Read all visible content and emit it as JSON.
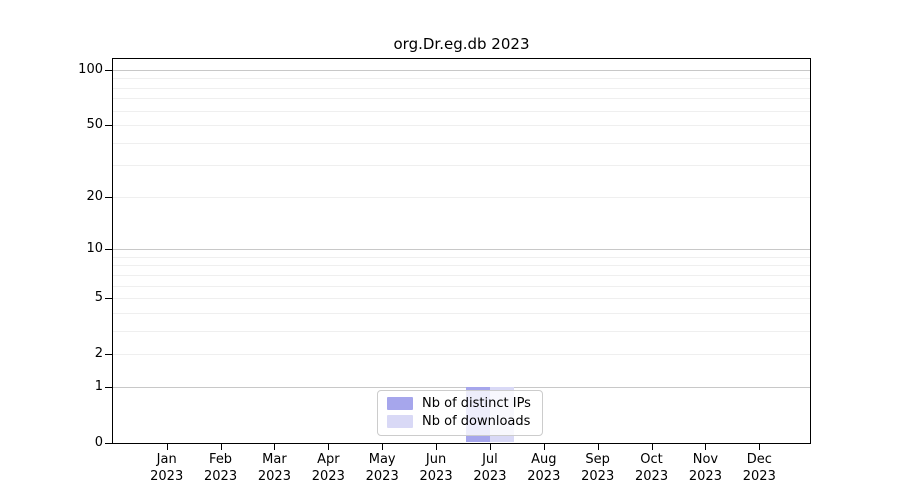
{
  "chart_data": {
    "type": "bar",
    "title": "org.Dr.eg.db 2023",
    "categories": [
      "Jan",
      "Feb",
      "Mar",
      "Apr",
      "May",
      "Jun",
      "Jul",
      "Aug",
      "Sep",
      "Oct",
      "Nov",
      "Dec"
    ],
    "category_year": "2023",
    "series": [
      {
        "name": "Nb of distinct IPs",
        "color": "#a6a6ec",
        "values": [
          0,
          0,
          0,
          0,
          0,
          0,
          1,
          0,
          0,
          0,
          0,
          0
        ]
      },
      {
        "name": "Nb of downloads",
        "color": "#d9d9f6",
        "values": [
          0,
          0,
          0,
          0,
          0,
          0,
          1,
          0,
          0,
          0,
          0,
          0
        ]
      }
    ],
    "yscale": "log1p",
    "ylim": [
      0,
      110
    ],
    "ytick_values": [
      0,
      1,
      2,
      5,
      10,
      20,
      50,
      100
    ],
    "ytick_labels": [
      "0",
      "1",
      "2",
      "5",
      "10",
      "20",
      "50",
      "100"
    ],
    "grid": {
      "minor_values": [
        2,
        3,
        4,
        5,
        6,
        7,
        8,
        9,
        20,
        30,
        40,
        50,
        60,
        70,
        80,
        90
      ],
      "major_values": [
        1,
        10,
        100
      ],
      "minor_color": "#efefef",
      "major_color": "#c8c8c8"
    },
    "legend": {
      "position": "bottom-center",
      "border_color": "#cccccc"
    },
    "axis_color": "#000000"
  }
}
